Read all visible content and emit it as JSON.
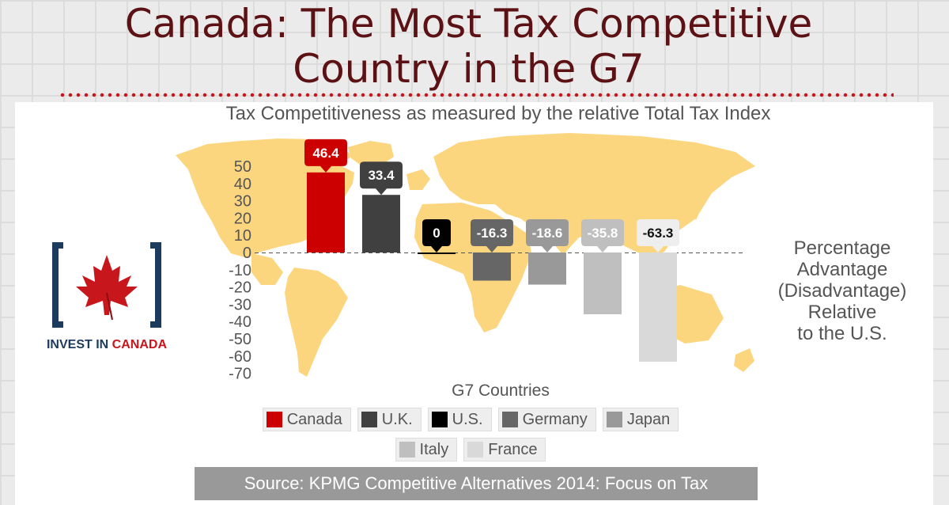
{
  "header": {
    "title_line1": "Canada: The Most Tax Competitive",
    "title_line2": "Country in the G7"
  },
  "logo": {
    "text_part1": "INVEST IN ",
    "text_part2": "CANADA"
  },
  "side_label": [
    "Percentage",
    "Advantage",
    "(Disadvantage)",
    "Relative",
    "to the U.S."
  ],
  "source": "Source: KPMG Competitive Alternatives 2014: Focus on Tax",
  "colors": {
    "title": "#5c1214",
    "map": "#fcd57f",
    "Canada": "#cc0000",
    "U.K.": "#404040",
    "U.S.": "#000000",
    "Germany": "#666666",
    "Japan": "#999999",
    "Italy": "#bfbfbf",
    "France": "#d9d9d9"
  },
  "chart_data": {
    "type": "bar",
    "title": "Tax Competitiveness as measured by the relative Total Tax Index",
    "xlabel": "G7 Countries",
    "ylabel": "",
    "ylim": [
      -70,
      50
    ],
    "yticks": [
      50,
      40,
      30,
      20,
      10,
      0,
      -10,
      -20,
      -30,
      -40,
      -50,
      -60,
      -70
    ],
    "grid": false,
    "legend_position": "bottom",
    "categories": [
      "Canada",
      "U.K.",
      "U.S.",
      "Germany",
      "Japan",
      "Italy",
      "France"
    ],
    "values": [
      46.4,
      33.4,
      0,
      -16.3,
      -18.6,
      -35.8,
      -63.3
    ],
    "value_labels": [
      "46.4",
      "33.4",
      "0",
      "-16.3",
      "-18.6",
      "-35.8",
      "-63.3"
    ]
  }
}
